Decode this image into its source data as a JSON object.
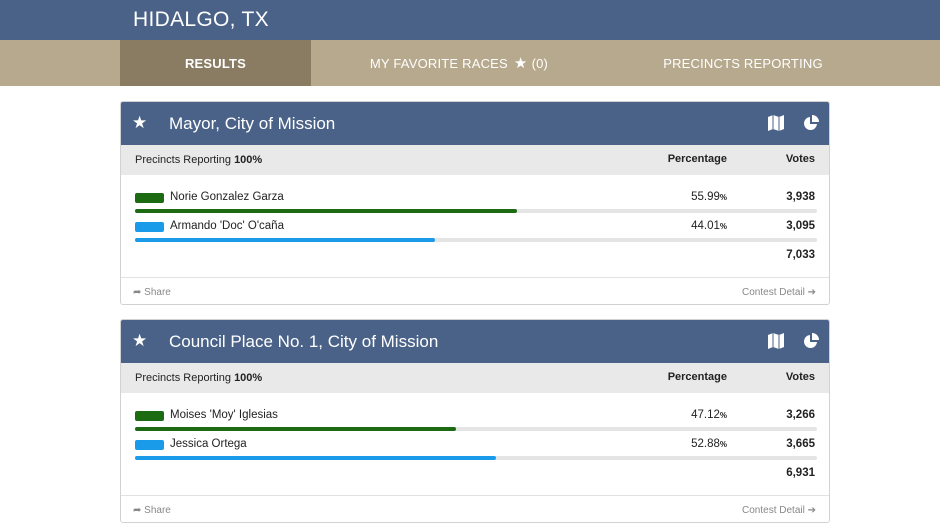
{
  "header": {
    "title": "HIDALGO, TX"
  },
  "nav": {
    "results": "RESULTS",
    "favorites": "MY FAVORITE RACES",
    "favorites_count": "(0)",
    "precincts": "PRECINCTS REPORTING"
  },
  "labels": {
    "percentage": "Percentage",
    "votes": "Votes",
    "precincts_reporting": "Precincts Reporting",
    "share": "Share",
    "contest_detail": "Contest Detail"
  },
  "races": [
    {
      "title": "Mayor, City of Mission",
      "reporting": "100%",
      "candidates": [
        {
          "name": "Norie Gonzalez Garza",
          "pct": "55.99",
          "votes": "3,938",
          "share": 0.5599,
          "color": "#1c6b12"
        },
        {
          "name": "Armando 'Doc' O'caña",
          "pct": "44.01",
          "votes": "3,095",
          "share": 0.4401,
          "color": "#1a9bea"
        }
      ],
      "total": "7,033"
    },
    {
      "title": "Council Place No. 1, City of Mission",
      "reporting": "100%",
      "candidates": [
        {
          "name": "Moises 'Moy' Iglesias",
          "pct": "47.12",
          "votes": "3,266",
          "share": 0.4712,
          "color": "#1c6b12"
        },
        {
          "name": "Jessica Ortega",
          "pct": "52.88",
          "votes": "3,665",
          "share": 0.5288,
          "color": "#1a9bea"
        }
      ],
      "total": "6,931"
    }
  ]
}
